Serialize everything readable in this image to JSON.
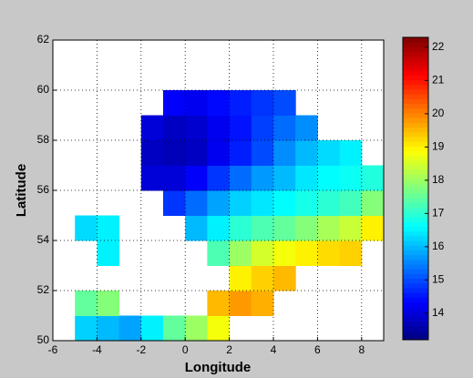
{
  "chart_data": {
    "type": "heatmap",
    "x_label": "Longitude",
    "y_label": "Latitude",
    "x": [
      -5,
      -4,
      -3,
      -2,
      -1,
      0,
      1,
      2,
      3,
      4,
      5,
      6,
      7,
      8,
      9
    ],
    "y": [
      50,
      51,
      52,
      53,
      54,
      55,
      56,
      57,
      58,
      59,
      60
    ],
    "z": [
      [
        16.2,
        16.0,
        15.8,
        16.5,
        17.5,
        18.0,
        18.8,
        null,
        null,
        null,
        null,
        null,
        null,
        null
      ],
      [
        17.5,
        17.8,
        null,
        null,
        null,
        null,
        19.5,
        19.8,
        19.6,
        null,
        null,
        null,
        null,
        null
      ],
      [
        null,
        null,
        null,
        null,
        null,
        null,
        null,
        19.0,
        19.3,
        19.5,
        null,
        null,
        null,
        null
      ],
      [
        null,
        16.5,
        null,
        null,
        null,
        null,
        17.3,
        18.0,
        18.5,
        18.8,
        19.0,
        19.2,
        19.3,
        null
      ],
      [
        16.3,
        16.5,
        null,
        null,
        null,
        16.0,
        16.5,
        17.0,
        17.3,
        17.5,
        17.8,
        18.1,
        18.4,
        19.0
      ],
      [
        null,
        null,
        null,
        null,
        14.8,
        15.3,
        15.8,
        16.2,
        16.4,
        16.6,
        16.8,
        17.0,
        17.2,
        17.8
      ],
      [
        null,
        null,
        null,
        14.0,
        14.0,
        14.3,
        14.8,
        15.3,
        15.7,
        16.0,
        16.4,
        16.6,
        16.7,
        16.9
      ],
      [
        null,
        null,
        null,
        13.8,
        13.7,
        13.8,
        14.2,
        14.6,
        15.0,
        15.6,
        16.0,
        16.3,
        16.5,
        null
      ],
      [
        null,
        null,
        null,
        14.0,
        13.8,
        13.9,
        14.2,
        14.5,
        14.9,
        15.3,
        15.6,
        null,
        null,
        null
      ],
      [
        null,
        null,
        null,
        null,
        14.3,
        14.2,
        14.4,
        14.6,
        14.8,
        15.0,
        null,
        null,
        null,
        null
      ]
    ],
    "colormap": "jet",
    "xlim": [
      -6,
      9
    ],
    "xticks": [
      -6,
      -4,
      -2,
      0,
      2,
      4,
      6,
      8
    ],
    "ylim": [
      50,
      62
    ],
    "yticks": [
      50,
      52,
      54,
      56,
      58,
      60,
      62
    ],
    "clim": [
      13.2,
      22.3
    ],
    "cticks": [
      14,
      15,
      16,
      17,
      18,
      19,
      20,
      21,
      22
    ],
    "grid": true
  }
}
